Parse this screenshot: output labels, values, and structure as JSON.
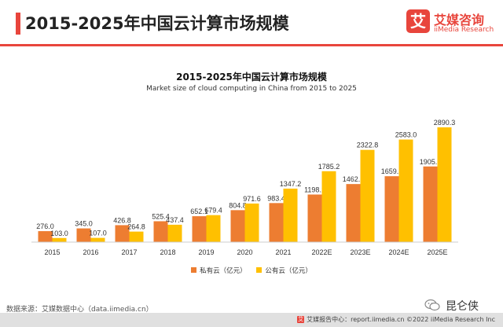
{
  "header": {
    "title": "2015-2025年中国云计算市场规模",
    "logo_mark": "艾",
    "logo_cn": "艾媒咨询",
    "logo_en": "iiMedia Research"
  },
  "colors": {
    "accent": "#e8453c",
    "private": "#ed7d31",
    "public": "#ffc000",
    "axis": "#cccccc"
  },
  "chart_data": {
    "type": "bar",
    "title": "2015-2025年中国云计算市场规模",
    "subtitle": "Market size of cloud computing in China from 2015 to 2025",
    "categories": [
      "2015",
      "2016",
      "2017",
      "2018",
      "2019",
      "2020",
      "2021",
      "2022E",
      "2023E",
      "2024E",
      "2025E"
    ],
    "series": [
      {
        "name": "私有云（亿元）",
        "values": [
          276.0,
          345.0,
          426.8,
          525.4,
          652.1,
          804.8,
          983.4,
          1198.2,
          1462.1,
          1659.5,
          1905.1
        ],
        "labels": [
          "276.0",
          "345.0",
          "426.8",
          "525.4",
          "652.1",
          "804.8",
          "983.4",
          "1198.2",
          "1462.1",
          "1659.5",
          "1905.1"
        ]
      },
      {
        "name": "公有云（亿元）",
        "values": [
          103.0,
          107.0,
          264.8,
          437.4,
          679.4,
          971.6,
          1347.2,
          1785.2,
          2322.8,
          2583.0,
          2890.3
        ],
        "labels": [
          "103.0",
          "107.0",
          "264.8",
          "437.4",
          "679.4",
          "971.6",
          "1347.2",
          "1785.2",
          "2322.8",
          "2583.0",
          "2890.3"
        ]
      }
    ],
    "ylim": [
      0,
      2890.3
    ],
    "grid": false,
    "legend": "bottom-center",
    "xlabel": "",
    "ylabel": ""
  },
  "source": "数据来源：艾媒数据中心（data.iimedia.cn）",
  "wechat": {
    "name": "昆仑侠"
  },
  "footer": {
    "icon": "艾",
    "text": "艾媒报告中心：report.iimedia.cn    ©2022 iiMedia Research Inc"
  }
}
